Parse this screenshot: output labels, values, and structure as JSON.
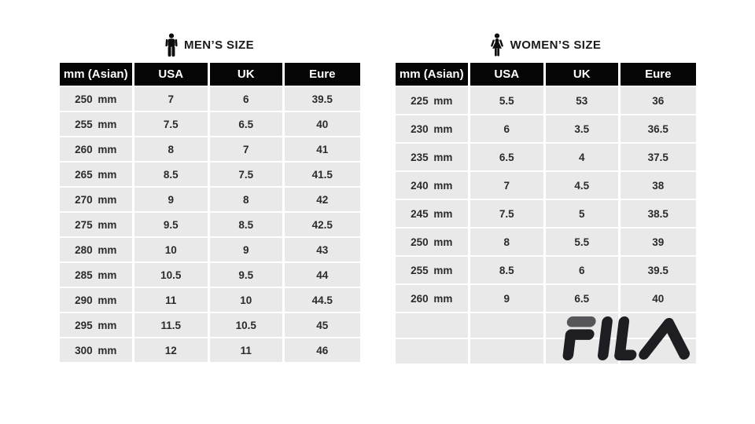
{
  "mens": {
    "title": "MEN’S SIZE",
    "headers": [
      "mm (Asian)",
      "USA",
      "UK",
      "Eure"
    ],
    "rows": [
      [
        "250 mm",
        "7",
        "6",
        "39.5"
      ],
      [
        "255 mm",
        "7.5",
        "6.5",
        "40"
      ],
      [
        "260 mm",
        "8",
        "7",
        "41"
      ],
      [
        "265 mm",
        "8.5",
        "7.5",
        "41.5"
      ],
      [
        "270 mm",
        "9",
        "8",
        "42"
      ],
      [
        "275 mm",
        "9.5",
        "8.5",
        "42.5"
      ],
      [
        "280 mm",
        "10",
        "9",
        "43"
      ],
      [
        "285 mm",
        "10.5",
        "9.5",
        "44"
      ],
      [
        "290 mm",
        "11",
        "10",
        "44.5"
      ],
      [
        "295 mm",
        "11.5",
        "10.5",
        "45"
      ],
      [
        "300 mm",
        "12",
        "11",
        "46"
      ]
    ],
    "empty_rows": 0
  },
  "womens": {
    "title": "WOMEN’S SIZE",
    "headers": [
      "mm (Asian)",
      "USA",
      "UK",
      "Eure"
    ],
    "rows": [
      [
        "225 mm",
        "5.5",
        "53",
        "36"
      ],
      [
        "230 mm",
        "6",
        "3.5",
        "36.5"
      ],
      [
        "235 mm",
        "6.5",
        "4",
        "37.5"
      ],
      [
        "240 mm",
        "7",
        "4.5",
        "38"
      ],
      [
        "245 mm",
        "7.5",
        "5",
        "38.5"
      ],
      [
        "250 mm",
        "8",
        "5.5",
        "39"
      ],
      [
        "255 mm",
        "8.5",
        "6",
        "39.5"
      ],
      [
        "260 mm",
        "9",
        "6.5",
        "40"
      ]
    ],
    "empty_rows": 2
  },
  "logo": {
    "brand": "FILA",
    "dark_color": "#1e1e22",
    "accent_color": "#55555a"
  },
  "colors": {
    "header_bg": "#050505",
    "header_text": "#ffffff",
    "row_bg": "#e9e9e9",
    "cell_text": "#2b2b2b",
    "grid": "#ffffff"
  }
}
